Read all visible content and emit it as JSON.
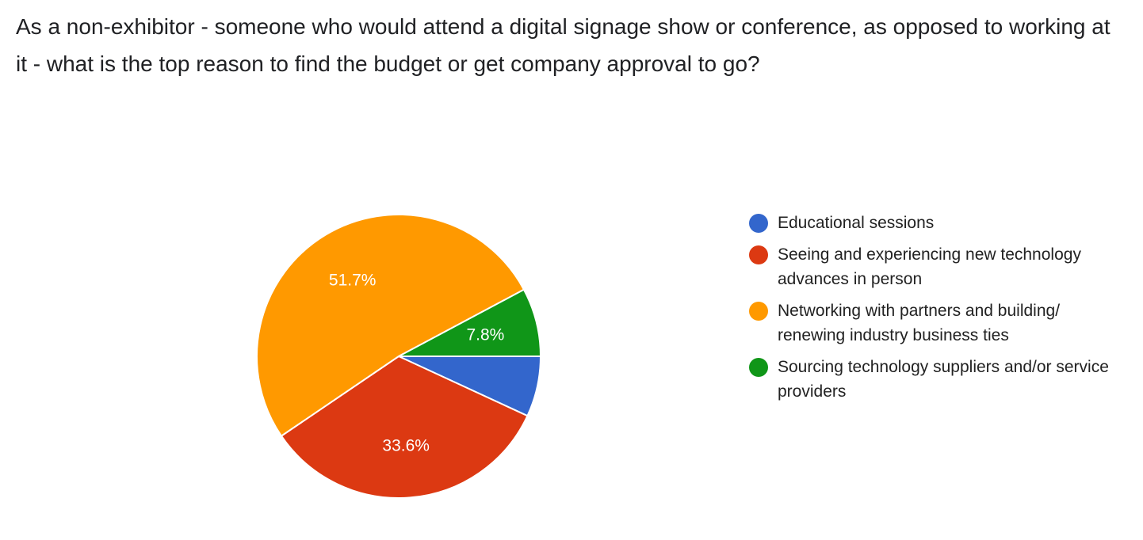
{
  "title": "As a non-exhibitor - someone who would attend a digital signage show or conference, as opposed to working at it - what is the top reason to find the budget or get company approval to go?",
  "chart_data": {
    "type": "pie",
    "title": "As a non-exhibitor - someone who would attend a digital signage show or conference, as opposed to working at it - what is the top reason to find the budget or get company approval to go?",
    "legend_position": "right",
    "slices": [
      {
        "label": "Educational sessions",
        "value": 6.9,
        "color": "#3366cc",
        "data_label": ""
      },
      {
        "label": "Seeing and experiencing new technology advances in person",
        "value": 33.6,
        "color": "#dc3912",
        "data_label": "33.6%"
      },
      {
        "label": "Networking with partners and building/ renewing industry business ties",
        "value": 51.7,
        "color": "#ff9900",
        "data_label": "51.7%"
      },
      {
        "label": "Sourcing technology suppliers and/or service providers",
        "value": 7.8,
        "color": "#109618",
        "data_label": "7.8%"
      }
    ]
  }
}
